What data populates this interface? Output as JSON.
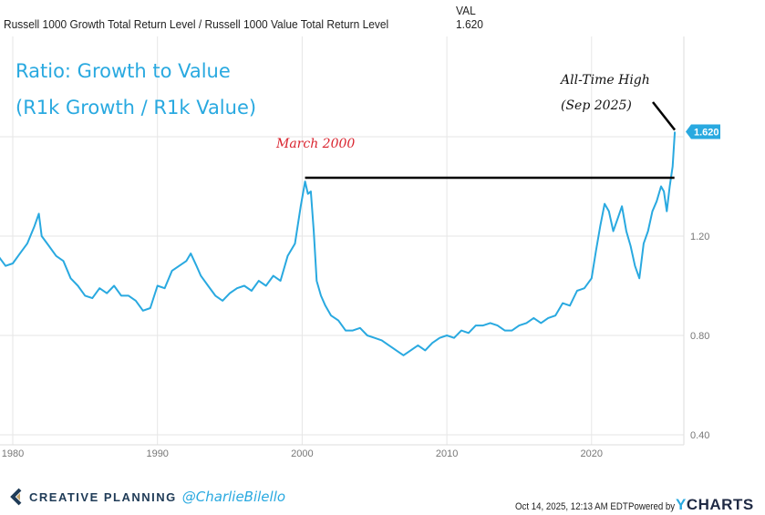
{
  "header": {
    "col_label": "VAL",
    "series_name": "Russell 1000 Growth Total Return Level / Russell 1000 Value Total Return Level",
    "value": "1.620"
  },
  "annotations": {
    "title_line1": "Ratio: Growth to Value",
    "title_line2": "(R1k Growth / R1k Value)",
    "high_line1": "All-Time High",
    "high_line2": "(Sep 2025)",
    "march_2000": "March 2000"
  },
  "footer": {
    "brand": "CREATIVE PLANNING",
    "handle": "@CharlieBilello",
    "timestamp": "Oct 14, 2025, 12:13 AM EDT",
    "powered_by": "Powered by",
    "ycharts": "YCHARTS"
  },
  "colors": {
    "series": "#29a9e0",
    "red": "#d9232e",
    "grid": "#e6e6e6"
  },
  "chart_data": {
    "type": "line",
    "title": "Ratio: Growth to Value (R1k Growth / R1k Value)",
    "xlabel": "",
    "ylabel": "",
    "xlim": [
      1979.0,
      2025.9
    ],
    "ylim": [
      0.4,
      1.7
    ],
    "x_ticks": [
      1980,
      1990,
      2000,
      2010,
      2020
    ],
    "x_tick_labels": [
      "1980",
      "1990",
      "2000",
      "2010",
      "2020"
    ],
    "y_ticks": [
      0.4,
      0.8,
      1.2
    ],
    "y_tick_labels": [
      "0.40",
      "0.80",
      "1.20"
    ],
    "grid": true,
    "last_value_label": "1.620",
    "reference_line": {
      "label": "March 2000",
      "value": 1.435,
      "x_start": 2000.2,
      "x_end": 2025.6
    },
    "series": [
      {
        "name": "Russell 1000 Growth Total Return Level / Russell 1000 Value Total Return Level",
        "x": [
          1979.0,
          1979.5,
          1980.0,
          1980.5,
          1981.0,
          1981.5,
          1981.8,
          1982.0,
          1982.5,
          1983.0,
          1983.5,
          1984.0,
          1984.5,
          1985.0,
          1985.5,
          1986.0,
          1986.5,
          1987.0,
          1987.5,
          1988.0,
          1988.5,
          1989.0,
          1989.5,
          1990.0,
          1990.5,
          1991.0,
          1991.5,
          1992.0,
          1992.3,
          1992.7,
          1993.0,
          1993.5,
          1994.0,
          1994.5,
          1995.0,
          1995.5,
          1996.0,
          1996.5,
          1997.0,
          1997.5,
          1998.0,
          1998.5,
          1999.0,
          1999.5,
          1999.9,
          2000.2,
          2000.4,
          2000.6,
          2000.8,
          2001.0,
          2001.3,
          2001.6,
          2002.0,
          2002.5,
          2003.0,
          2003.5,
          2004.0,
          2004.5,
          2005.0,
          2005.5,
          2006.0,
          2006.5,
          2007.0,
          2007.5,
          2008.0,
          2008.5,
          2009.0,
          2009.5,
          2010.0,
          2010.5,
          2011.0,
          2011.5,
          2012.0,
          2012.5,
          2013.0,
          2013.5,
          2014.0,
          2014.5,
          2015.0,
          2015.5,
          2016.0,
          2016.5,
          2017.0,
          2017.5,
          2018.0,
          2018.5,
          2019.0,
          2019.5,
          2020.0,
          2020.3,
          2020.6,
          2020.9,
          2021.2,
          2021.5,
          2021.8,
          2022.1,
          2022.4,
          2022.7,
          2023.0,
          2023.3,
          2023.6,
          2023.9,
          2024.2,
          2024.5,
          2024.8,
          2025.0,
          2025.2,
          2025.4,
          2025.6,
          2025.75
        ],
        "values": [
          1.12,
          1.08,
          1.09,
          1.13,
          1.17,
          1.24,
          1.29,
          1.2,
          1.16,
          1.12,
          1.1,
          1.03,
          1.0,
          0.96,
          0.95,
          0.99,
          0.97,
          1.0,
          0.96,
          0.96,
          0.94,
          0.9,
          0.91,
          1.0,
          0.99,
          1.06,
          1.08,
          1.1,
          1.13,
          1.08,
          1.04,
          1.0,
          0.96,
          0.94,
          0.97,
          0.99,
          1.0,
          0.98,
          1.02,
          1.0,
          1.04,
          1.02,
          1.12,
          1.17,
          1.32,
          1.42,
          1.37,
          1.38,
          1.22,
          1.02,
          0.96,
          0.92,
          0.88,
          0.86,
          0.82,
          0.82,
          0.83,
          0.8,
          0.79,
          0.78,
          0.76,
          0.74,
          0.72,
          0.74,
          0.76,
          0.74,
          0.77,
          0.79,
          0.8,
          0.79,
          0.82,
          0.81,
          0.84,
          0.84,
          0.85,
          0.84,
          0.82,
          0.82,
          0.84,
          0.85,
          0.87,
          0.85,
          0.87,
          0.88,
          0.93,
          0.92,
          0.98,
          0.99,
          1.03,
          1.14,
          1.24,
          1.33,
          1.3,
          1.22,
          1.27,
          1.32,
          1.22,
          1.16,
          1.08,
          1.03,
          1.17,
          1.22,
          1.3,
          1.34,
          1.4,
          1.38,
          1.3,
          1.4,
          1.48,
          1.62
        ]
      }
    ]
  }
}
